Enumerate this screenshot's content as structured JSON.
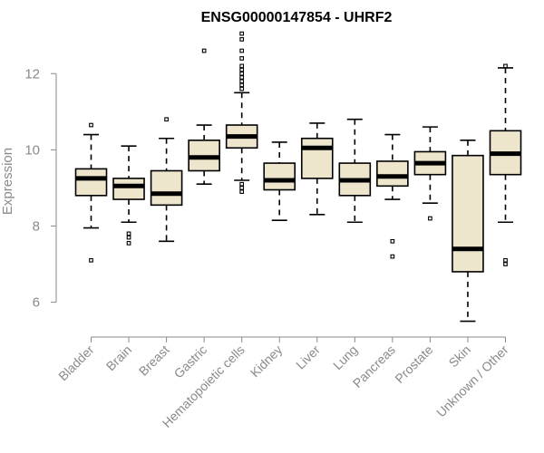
{
  "chart_data": {
    "type": "boxplot",
    "title": "ENSG00000147854 - UHRF2",
    "xlabel": "",
    "ylabel": "Expression",
    "ylim": [
      5.3,
      13.1
    ],
    "yticks": [
      6,
      8,
      10,
      12
    ],
    "grid": false,
    "colors": {
      "box_fill": "#ede6cd",
      "box_stroke": "#000000",
      "median": "#000000",
      "axis": "#8a8a8a",
      "text": "#8a8a8a"
    },
    "categories": [
      "Bladder",
      "Brain",
      "Breast",
      "Gastric",
      "Hematopoietic cells",
      "Kidney",
      "Liver",
      "Lung",
      "Pancreas",
      "Prostate",
      "Skin",
      "Unknown / Other"
    ],
    "series": [
      {
        "name": "Bladder",
        "whisker_low": 7.95,
        "q1": 8.8,
        "median": 9.25,
        "q3": 9.5,
        "whisker_high": 10.4,
        "outliers": [
          7.1,
          10.65
        ]
      },
      {
        "name": "Brain",
        "whisker_low": 8.1,
        "q1": 8.7,
        "median": 9.05,
        "q3": 9.25,
        "whisker_high": 10.1,
        "outliers": [
          7.55,
          7.7,
          7.8
        ]
      },
      {
        "name": "Breast",
        "whisker_low": 7.6,
        "q1": 8.55,
        "median": 8.85,
        "q3": 9.45,
        "whisker_high": 10.3,
        "outliers": [
          10.8
        ]
      },
      {
        "name": "Gastric",
        "whisker_low": 9.1,
        "q1": 9.45,
        "median": 9.8,
        "q3": 10.25,
        "whisker_high": 10.65,
        "outliers": [
          12.6
        ]
      },
      {
        "name": "Hematopoietic cells",
        "whisker_low": 9.2,
        "q1": 10.05,
        "median": 10.35,
        "q3": 10.65,
        "whisker_high": 11.5,
        "outliers": [
          8.9,
          9.0,
          9.1,
          11.6,
          11.7,
          11.8,
          11.9,
          12.0,
          12.1,
          12.2,
          12.4,
          12.6,
          12.9,
          13.05
        ]
      },
      {
        "name": "Kidney",
        "whisker_low": 8.15,
        "q1": 8.95,
        "median": 9.2,
        "q3": 9.65,
        "whisker_high": 10.2,
        "outliers": []
      },
      {
        "name": "Liver",
        "whisker_low": 8.3,
        "q1": 9.25,
        "median": 10.05,
        "q3": 10.3,
        "whisker_high": 10.7,
        "outliers": []
      },
      {
        "name": "Lung",
        "whisker_low": 8.1,
        "q1": 8.8,
        "median": 9.2,
        "q3": 9.65,
        "whisker_high": 10.8,
        "outliers": []
      },
      {
        "name": "Pancreas",
        "whisker_low": 8.7,
        "q1": 9.05,
        "median": 9.3,
        "q3": 9.7,
        "whisker_high": 10.4,
        "outliers": [
          7.2,
          7.6
        ]
      },
      {
        "name": "Prostate",
        "whisker_low": 8.6,
        "q1": 9.35,
        "median": 9.65,
        "q3": 9.95,
        "whisker_high": 10.6,
        "outliers": [
          8.2
        ]
      },
      {
        "name": "Skin",
        "whisker_low": 5.5,
        "q1": 6.8,
        "median": 7.4,
        "q3": 9.85,
        "whisker_high": 10.25,
        "outliers": []
      },
      {
        "name": "Unknown / Other",
        "whisker_low": 8.1,
        "q1": 9.35,
        "median": 9.9,
        "q3": 10.5,
        "whisker_high": 12.15,
        "outliers": [
          7.0,
          7.1,
          12.2
        ]
      }
    ]
  }
}
